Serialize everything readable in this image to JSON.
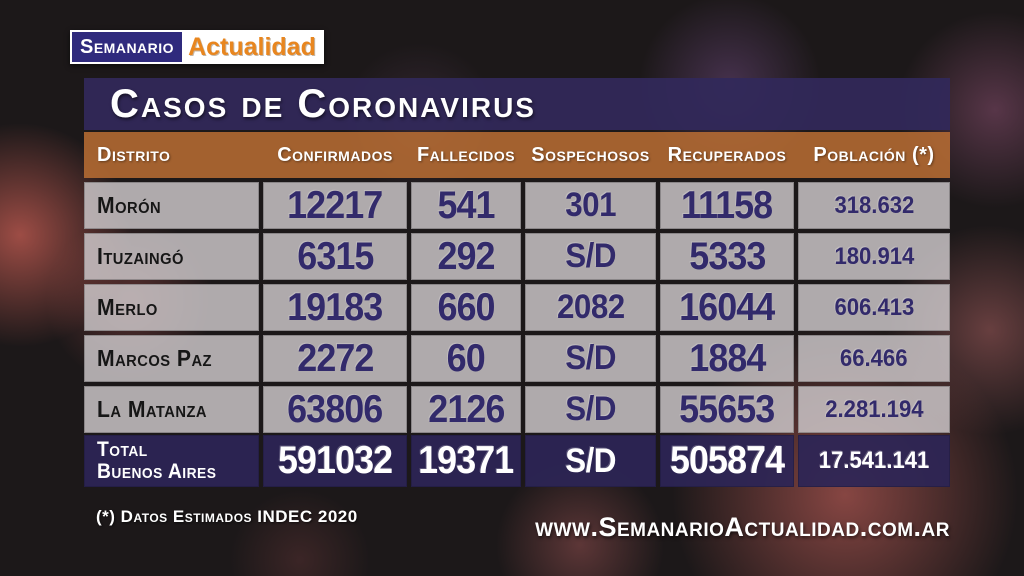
{
  "logo": {
    "part1": "Semanario",
    "part2": "Actualidad"
  },
  "title": "Casos de Coronavirus",
  "table": {
    "headers": [
      "Distrito",
      "Confirmados",
      "Fallecidos",
      "Sospechosos",
      "Recuperados",
      "Población (*)"
    ],
    "rows": [
      {
        "district": "Morón",
        "confirmed": "12217",
        "deaths": "541",
        "suspected": "301",
        "recovered": "11158",
        "population": "318.632"
      },
      {
        "district": "Ituzaingó",
        "confirmed": "6315",
        "deaths": "292",
        "suspected": "S/D",
        "recovered": "5333",
        "population": "180.914"
      },
      {
        "district": "Merlo",
        "confirmed": "19183",
        "deaths": "660",
        "suspected": "2082",
        "recovered": "16044",
        "population": "606.413"
      },
      {
        "district": "Marcos Paz",
        "confirmed": "2272",
        "deaths": "60",
        "suspected": "S/D",
        "recovered": "1884",
        "population": "66.466"
      },
      {
        "district": "La Matanza",
        "confirmed": "63806",
        "deaths": "2126",
        "suspected": "S/D",
        "recovered": "55653",
        "population": "2.281.194"
      }
    ],
    "total": {
      "label_line1": "Total",
      "label_line2": "Buenos Aires",
      "confirmed": "591032",
      "deaths": "19371",
      "suspected": "S/D",
      "recovered": "505874",
      "population": "17.541.141"
    }
  },
  "footer": {
    "note": "(*) Datos Estimados INDEC 2020",
    "website": "www.SemanarioActualidad.com.ar"
  },
  "colors": {
    "logo-blue": "#2f2a7d",
    "logo-orange": "#e8861f",
    "band-purple": "#32295a",
    "header-orange": "#bb6e34",
    "cell-grey": "#a8a4a6",
    "number-navy": "#322a6b",
    "total-navy": "#2c2556",
    "text-white": "#ffffff"
  },
  "chart_data": {
    "type": "table",
    "title": "Casos de Coronavirus",
    "columns": [
      "Distrito",
      "Confirmados",
      "Fallecidos",
      "Sospechosos",
      "Recuperados",
      "Población (*)"
    ],
    "rows": [
      [
        "Morón",
        "12217",
        "541",
        "301",
        "11158",
        "318.632"
      ],
      [
        "Ituzaingó",
        "6315",
        "292",
        "S/D",
        "5333",
        "180.914"
      ],
      [
        "Merlo",
        "19183",
        "660",
        "2082",
        "16044",
        "606.413"
      ],
      [
        "Marcos Paz",
        "2272",
        "60",
        "S/D",
        "1884",
        "66.466"
      ],
      [
        "La Matanza",
        "63806",
        "2126",
        "S/D",
        "55653",
        "2.281.194"
      ],
      [
        "Total Buenos Aires",
        "591032",
        "19371",
        "S/D",
        "505874",
        "17.541.141"
      ]
    ],
    "footnote": "(*) Datos Estimados INDEC 2020",
    "source": "www.SemanarioActualidad.com.ar"
  }
}
